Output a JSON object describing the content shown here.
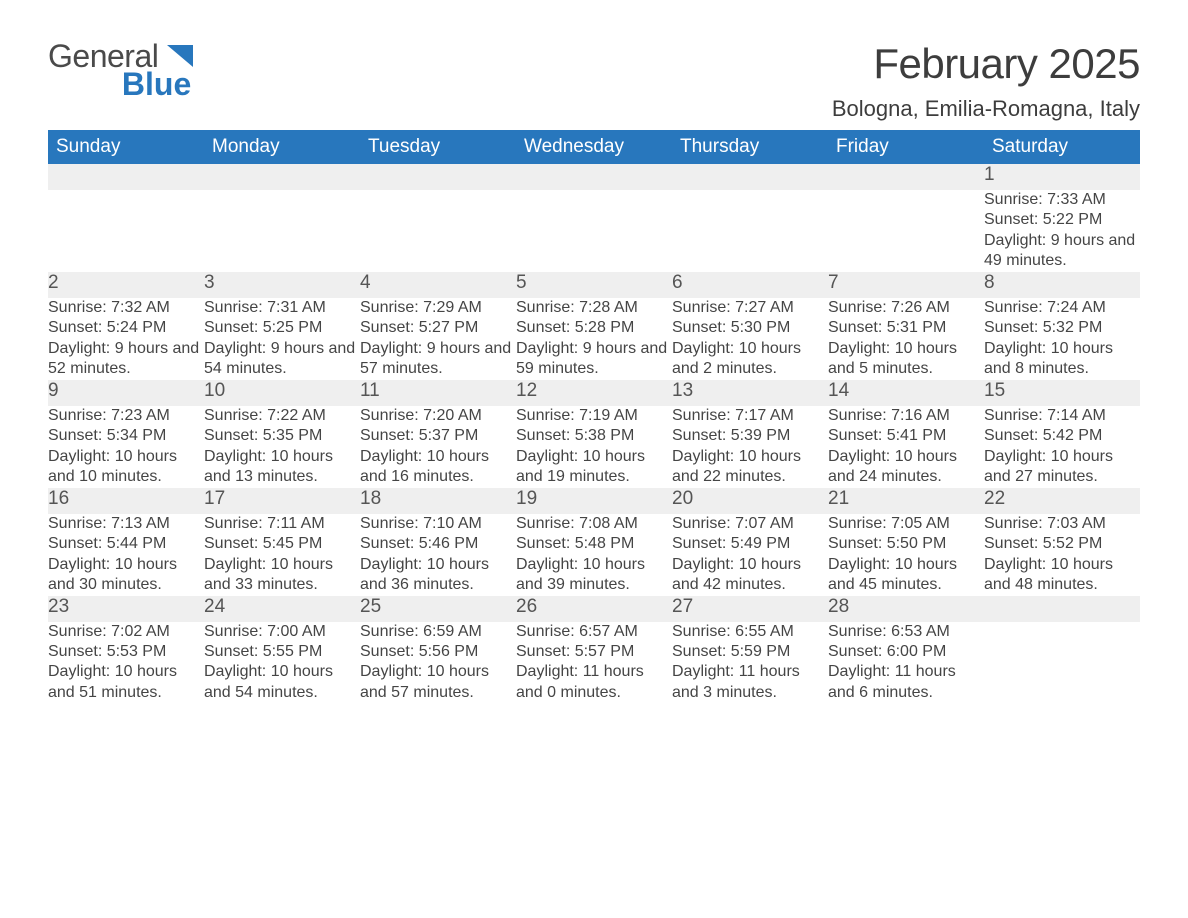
{
  "logo": {
    "word1": "General",
    "word2": "Blue"
  },
  "colors": {
    "brand_blue": "#2877bd",
    "header_text": "#ffffff",
    "daynum_bg": "#efefef",
    "body_text": "#454545",
    "title_text": "#3d3d3d"
  },
  "title": "February 2025",
  "location": "Bologna, Emilia-Romagna, Italy",
  "weekdays": [
    "Sunday",
    "Monday",
    "Tuesday",
    "Wednesday",
    "Thursday",
    "Friday",
    "Saturday"
  ],
  "weeks": [
    [
      null,
      null,
      null,
      null,
      null,
      null,
      {
        "n": "1",
        "sunrise": "Sunrise: 7:33 AM",
        "sunset": "Sunset: 5:22 PM",
        "daylight": "Daylight: 9 hours and 49 minutes."
      }
    ],
    [
      {
        "n": "2",
        "sunrise": "Sunrise: 7:32 AM",
        "sunset": "Sunset: 5:24 PM",
        "daylight": "Daylight: 9 hours and 52 minutes."
      },
      {
        "n": "3",
        "sunrise": "Sunrise: 7:31 AM",
        "sunset": "Sunset: 5:25 PM",
        "daylight": "Daylight: 9 hours and 54 minutes."
      },
      {
        "n": "4",
        "sunrise": "Sunrise: 7:29 AM",
        "sunset": "Sunset: 5:27 PM",
        "daylight": "Daylight: 9 hours and 57 minutes."
      },
      {
        "n": "5",
        "sunrise": "Sunrise: 7:28 AM",
        "sunset": "Sunset: 5:28 PM",
        "daylight": "Daylight: 9 hours and 59 minutes."
      },
      {
        "n": "6",
        "sunrise": "Sunrise: 7:27 AM",
        "sunset": "Sunset: 5:30 PM",
        "daylight": "Daylight: 10 hours and 2 minutes."
      },
      {
        "n": "7",
        "sunrise": "Sunrise: 7:26 AM",
        "sunset": "Sunset: 5:31 PM",
        "daylight": "Daylight: 10 hours and 5 minutes."
      },
      {
        "n": "8",
        "sunrise": "Sunrise: 7:24 AM",
        "sunset": "Sunset: 5:32 PM",
        "daylight": "Daylight: 10 hours and 8 minutes."
      }
    ],
    [
      {
        "n": "9",
        "sunrise": "Sunrise: 7:23 AM",
        "sunset": "Sunset: 5:34 PM",
        "daylight": "Daylight: 10 hours and 10 minutes."
      },
      {
        "n": "10",
        "sunrise": "Sunrise: 7:22 AM",
        "sunset": "Sunset: 5:35 PM",
        "daylight": "Daylight: 10 hours and 13 minutes."
      },
      {
        "n": "11",
        "sunrise": "Sunrise: 7:20 AM",
        "sunset": "Sunset: 5:37 PM",
        "daylight": "Daylight: 10 hours and 16 minutes."
      },
      {
        "n": "12",
        "sunrise": "Sunrise: 7:19 AM",
        "sunset": "Sunset: 5:38 PM",
        "daylight": "Daylight: 10 hours and 19 minutes."
      },
      {
        "n": "13",
        "sunrise": "Sunrise: 7:17 AM",
        "sunset": "Sunset: 5:39 PM",
        "daylight": "Daylight: 10 hours and 22 minutes."
      },
      {
        "n": "14",
        "sunrise": "Sunrise: 7:16 AM",
        "sunset": "Sunset: 5:41 PM",
        "daylight": "Daylight: 10 hours and 24 minutes."
      },
      {
        "n": "15",
        "sunrise": "Sunrise: 7:14 AM",
        "sunset": "Sunset: 5:42 PM",
        "daylight": "Daylight: 10 hours and 27 minutes."
      }
    ],
    [
      {
        "n": "16",
        "sunrise": "Sunrise: 7:13 AM",
        "sunset": "Sunset: 5:44 PM",
        "daylight": "Daylight: 10 hours and 30 minutes."
      },
      {
        "n": "17",
        "sunrise": "Sunrise: 7:11 AM",
        "sunset": "Sunset: 5:45 PM",
        "daylight": "Daylight: 10 hours and 33 minutes."
      },
      {
        "n": "18",
        "sunrise": "Sunrise: 7:10 AM",
        "sunset": "Sunset: 5:46 PM",
        "daylight": "Daylight: 10 hours and 36 minutes."
      },
      {
        "n": "19",
        "sunrise": "Sunrise: 7:08 AM",
        "sunset": "Sunset: 5:48 PM",
        "daylight": "Daylight: 10 hours and 39 minutes."
      },
      {
        "n": "20",
        "sunrise": "Sunrise: 7:07 AM",
        "sunset": "Sunset: 5:49 PM",
        "daylight": "Daylight: 10 hours and 42 minutes."
      },
      {
        "n": "21",
        "sunrise": "Sunrise: 7:05 AM",
        "sunset": "Sunset: 5:50 PM",
        "daylight": "Daylight: 10 hours and 45 minutes."
      },
      {
        "n": "22",
        "sunrise": "Sunrise: 7:03 AM",
        "sunset": "Sunset: 5:52 PM",
        "daylight": "Daylight: 10 hours and 48 minutes."
      }
    ],
    [
      {
        "n": "23",
        "sunrise": "Sunrise: 7:02 AM",
        "sunset": "Sunset: 5:53 PM",
        "daylight": "Daylight: 10 hours and 51 minutes."
      },
      {
        "n": "24",
        "sunrise": "Sunrise: 7:00 AM",
        "sunset": "Sunset: 5:55 PM",
        "daylight": "Daylight: 10 hours and 54 minutes."
      },
      {
        "n": "25",
        "sunrise": "Sunrise: 6:59 AM",
        "sunset": "Sunset: 5:56 PM",
        "daylight": "Daylight: 10 hours and 57 minutes."
      },
      {
        "n": "26",
        "sunrise": "Sunrise: 6:57 AM",
        "sunset": "Sunset: 5:57 PM",
        "daylight": "Daylight: 11 hours and 0 minutes."
      },
      {
        "n": "27",
        "sunrise": "Sunrise: 6:55 AM",
        "sunset": "Sunset: 5:59 PM",
        "daylight": "Daylight: 11 hours and 3 minutes."
      },
      {
        "n": "28",
        "sunrise": "Sunrise: 6:53 AM",
        "sunset": "Sunset: 6:00 PM",
        "daylight": "Daylight: 11 hours and 6 minutes."
      },
      null
    ]
  ]
}
